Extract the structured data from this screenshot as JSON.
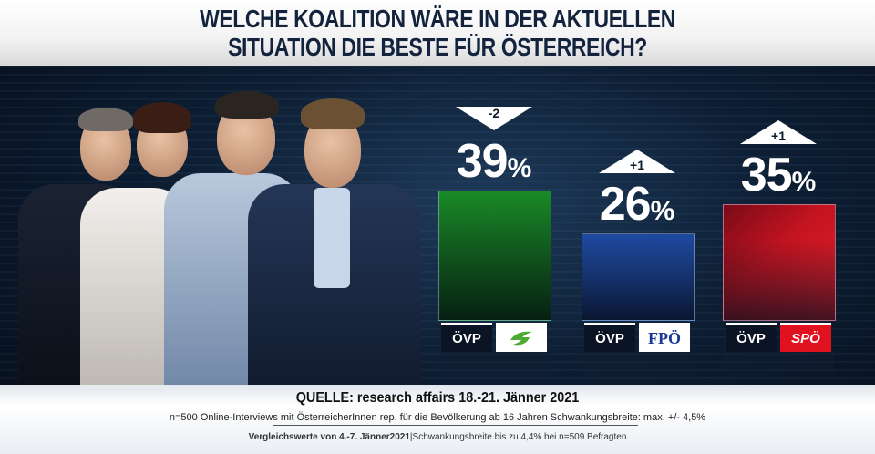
{
  "title": {
    "line1": "WELCHE KOALITION WÄRE IN DER AKTUELLEN",
    "line2": "SITUATION DIE BESTE FÜR ÖSTERREICH?"
  },
  "chart_data": {
    "type": "bar",
    "categories": [
      "ÖVP + Grüne",
      "ÖVP + FPÖ",
      "ÖVP + SPÖ"
    ],
    "values": [
      39,
      26,
      35
    ],
    "unit": "%",
    "changes": [
      "-2",
      "+1",
      "+1"
    ],
    "change_direction": [
      "down",
      "up",
      "up"
    ],
    "bar_colors": [
      "#1a8a28",
      "#1f4aa0",
      "#d8101e"
    ],
    "ylim": [
      0,
      100
    ]
  },
  "coalitions": [
    {
      "left_logo": "ÖVP",
      "right_logo": "grüne-logo",
      "right_color": "#4fa832"
    },
    {
      "left_logo": "ÖVP",
      "right_logo": "FPÖ",
      "right_color": "#1b3a94"
    },
    {
      "left_logo": "ÖVP",
      "right_logo": "SPÖ",
      "right_color": "#e1121f"
    }
  ],
  "pct_sign": "%",
  "footer": {
    "source": "QUELLE: research affairs 18.-21. Jänner 2021",
    "note1": "n=500 Online-Interviews mit ÖsterreicherInnen rep. für die Bevölkerung ab 16 Jahren  Schwankungsbreite: max. +/- 4,5%",
    "note2_bold": "Vergleichswerte von 4.-7. Jänner2021",
    "note2_rest": "|Schwankungsbreite bis zu 4,4% bei n=509 Befragten"
  }
}
